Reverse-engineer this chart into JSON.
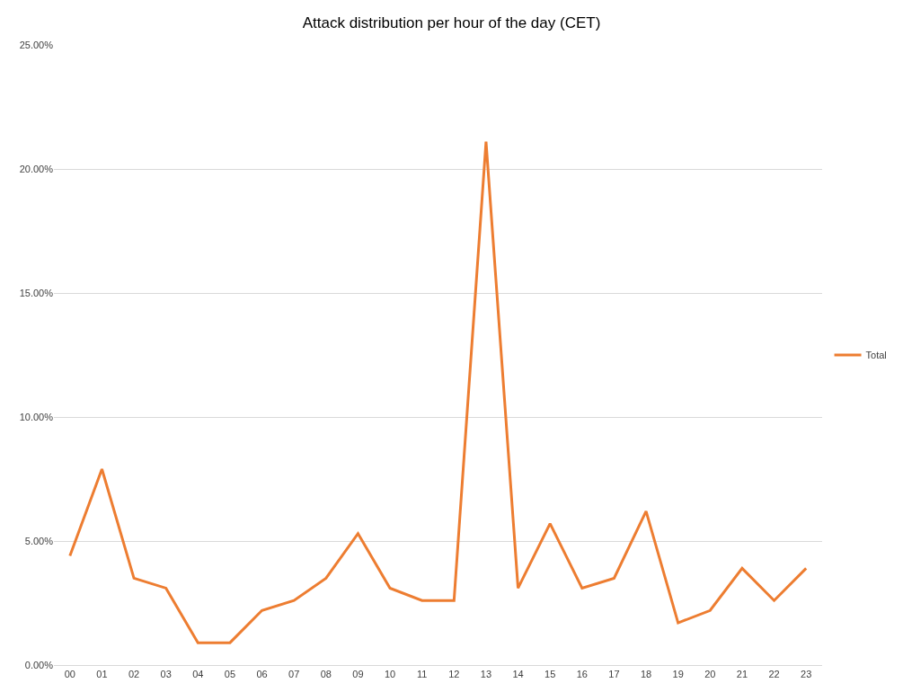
{
  "chart_data": {
    "type": "line",
    "title": "Attack distribution per hour of the day (CET)",
    "categories": [
      "00",
      "01",
      "02",
      "03",
      "04",
      "05",
      "06",
      "07",
      "08",
      "09",
      "10",
      "11",
      "12",
      "13",
      "14",
      "15",
      "16",
      "17",
      "18",
      "19",
      "20",
      "21",
      "22",
      "23"
    ],
    "series": [
      {
        "name": "Total",
        "color": "#ed7d31",
        "values": [
          4.4,
          7.9,
          3.5,
          3.1,
          0.9,
          0.9,
          2.2,
          2.6,
          3.5,
          5.3,
          3.1,
          2.6,
          2.6,
          21.1,
          3.1,
          5.7,
          3.1,
          3.5,
          6.2,
          1.7,
          2.2,
          3.9,
          2.6,
          3.9
        ]
      }
    ],
    "ylim": [
      0,
      25
    ],
    "yticks": [
      {
        "value": 0,
        "label": "0.00%"
      },
      {
        "value": 5,
        "label": "5.00%"
      },
      {
        "value": 10,
        "label": "10.00%"
      },
      {
        "value": 15,
        "label": "15.00%"
      },
      {
        "value": 20,
        "label": "20.00%"
      },
      {
        "value": 25,
        "label": "25.00%"
      }
    ],
    "grid": "y",
    "legend": "right",
    "marker": "none",
    "line_style": "solid"
  }
}
